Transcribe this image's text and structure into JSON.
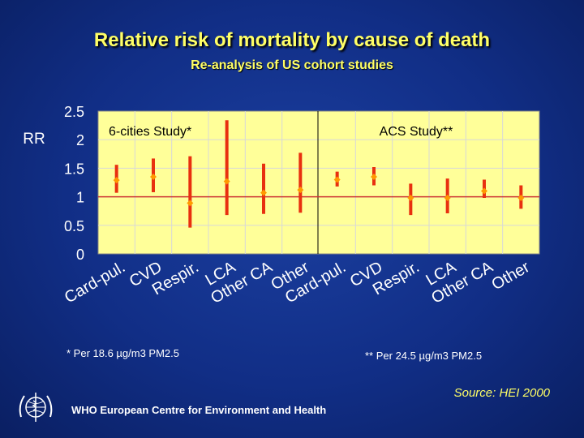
{
  "slide": {
    "title": "Relative risk of mortality by cause of death",
    "subtitle": "Re-analysis of US cohort studies",
    "footnote_left": "* Per 18.6 µg/m3 PM2.5",
    "footnote_right": "** Per 24.5 µg/m3 PM2.5",
    "source": "Source: HEI 2000",
    "footer": "WHO European Centre for Environment and Health",
    "logo_icon": "who-emblem-icon"
  },
  "colors": {
    "plot_bg": "#ffff99",
    "bar": "#e8300f",
    "point": "#ff9900",
    "grid": "#d8d8d8",
    "reference_line": "#cc3333",
    "axis_text": "#ffffff"
  },
  "chart_data": {
    "type": "scatter",
    "ylabel": "RR",
    "ylim": [
      0,
      2.5
    ],
    "yticks": [
      "0",
      "0.5",
      "1",
      "1.5",
      "2",
      "2.5"
    ],
    "reference_value": 1,
    "categories": [
      "Card-pul.",
      "CVD",
      "Respir.",
      "LCA",
      "Other CA",
      "Other",
      "Card-pul.",
      "CVD",
      "Respir.",
      "LCA",
      "Other CA",
      "Other"
    ],
    "panels": [
      {
        "name": "6-cities Study*",
        "categories": [
          "Card-pul.",
          "CVD",
          "Respir.",
          "LCA",
          "Other CA",
          "Other"
        ]
      },
      {
        "name": "ACS Study**",
        "categories": [
          "Card-pul.",
          "CVD",
          "Respir.",
          "LCA",
          "Other CA",
          "Other"
        ]
      }
    ],
    "series": [
      {
        "name": "6-cities Study*",
        "values": [
          1.29,
          1.35,
          0.89,
          1.27,
          1.07,
          1.12
        ],
        "lower": [
          1.07,
          1.08,
          0.46,
          0.68,
          0.7,
          0.72
        ],
        "upper": [
          1.56,
          1.67,
          1.71,
          2.34,
          1.58,
          1.77
        ]
      },
      {
        "name": "ACS Study**",
        "values": [
          1.3,
          1.35,
          0.98,
          0.98,
          1.1,
          0.98
        ],
        "lower": [
          1.18,
          1.2,
          0.68,
          0.71,
          0.98,
          0.79
        ],
        "upper": [
          1.44,
          1.52,
          1.23,
          1.32,
          1.3,
          1.2
        ]
      }
    ]
  }
}
